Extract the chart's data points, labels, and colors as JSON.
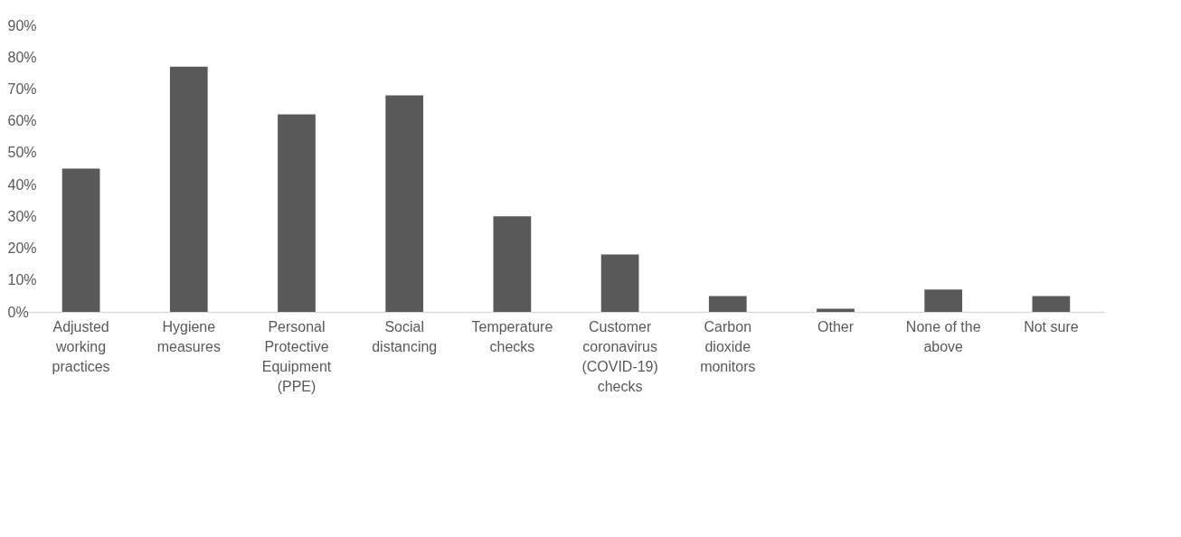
{
  "chart_data": {
    "type": "bar",
    "categories": [
      "Adjusted working practices",
      "Hygiene measures",
      "Personal Protective Equipment (PPE)",
      "Social distancing",
      "Temperature checks",
      "Customer coronavirus (COVID-19) checks",
      "Carbon dioxide monitors",
      "Other",
      "None of the above",
      "Not sure"
    ],
    "values": [
      45,
      77,
      62,
      68,
      30,
      18,
      5,
      1,
      7,
      5
    ],
    "color": "#595959",
    "ylim": [
      0,
      90
    ],
    "yticks": [
      {
        "value": 0,
        "label": "0%"
      },
      {
        "value": 10,
        "label": "10%"
      },
      {
        "value": 20,
        "label": "20%"
      },
      {
        "value": 30,
        "label": "30%"
      },
      {
        "value": 40,
        "label": "40%"
      },
      {
        "value": 50,
        "label": "50%"
      },
      {
        "value": 60,
        "label": "60%"
      },
      {
        "value": 70,
        "label": "70%"
      },
      {
        "value": 80,
        "label": "80%"
      },
      {
        "value": 90,
        "label": "90%"
      }
    ],
    "grid": false
  }
}
